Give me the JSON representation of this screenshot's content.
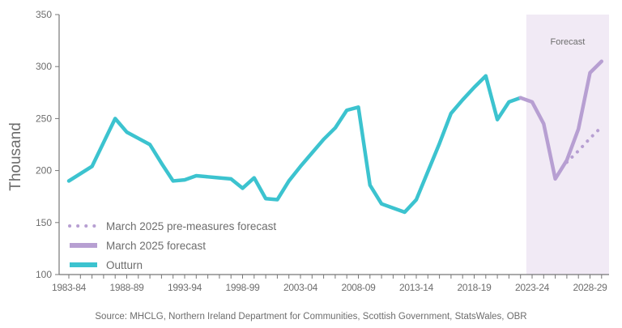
{
  "chart_data": {
    "type": "line",
    "ylabel": "Thousand",
    "xlabel": "",
    "ylim": [
      100,
      350
    ],
    "yticks": [
      100,
      150,
      200,
      250,
      300,
      350
    ],
    "categories": [
      "1983-84",
      "1984-85",
      "1985-86",
      "1986-87",
      "1987-88",
      "1988-89",
      "1989-90",
      "1990-91",
      "1991-92",
      "1992-93",
      "1993-94",
      "1994-95",
      "1995-96",
      "1996-97",
      "1997-98",
      "1998-99",
      "1999-00",
      "2000-01",
      "2001-02",
      "2002-03",
      "2003-04",
      "2004-05",
      "2005-06",
      "2006-07",
      "2007-08",
      "2008-09",
      "2009-10",
      "2010-11",
      "2011-12",
      "2012-13",
      "2013-14",
      "2014-15",
      "2015-16",
      "2016-17",
      "2017-18",
      "2018-19",
      "2019-20",
      "2020-21",
      "2021-22",
      "2022-23",
      "2023-24",
      "2024-25",
      "2025-26",
      "2026-27",
      "2027-28",
      "2028-29",
      "2029-30"
    ],
    "xtick_labels": [
      "1983-84",
      "1988-89",
      "1993-94",
      "1998-99",
      "2003-04",
      "2008-09",
      "2013-14",
      "2018-19",
      "2023-24",
      "2028-29"
    ],
    "shaded_region": {
      "label": "Forecast",
      "from": "2022-23",
      "to": "2029-30",
      "color": "#f1eaf5"
    },
    "series": [
      {
        "name": "Outturn",
        "color": "#3cc3cf",
        "style": "solid",
        "values": [
          190,
          197,
          204,
          227,
          250,
          237,
          231,
          225,
          207,
          190,
          191,
          195,
          194,
          193,
          192,
          183,
          193,
          173,
          172,
          190,
          204,
          217,
          230,
          241,
          258,
          261,
          186,
          168,
          164,
          160,
          172,
          199,
          226,
          255,
          268,
          280,
          291,
          249,
          266,
          270,
          null,
          null,
          null,
          null,
          null,
          null,
          null
        ]
      },
      {
        "name": "March 2025 forecast",
        "color": "#b79fd2",
        "style": "solid",
        "values": [
          null,
          null,
          null,
          null,
          null,
          null,
          null,
          null,
          null,
          null,
          null,
          null,
          null,
          null,
          null,
          null,
          null,
          null,
          null,
          null,
          null,
          null,
          null,
          null,
          null,
          null,
          null,
          null,
          null,
          null,
          null,
          null,
          null,
          null,
          null,
          null,
          null,
          null,
          null,
          270,
          266,
          245,
          192,
          210,
          240,
          294,
          305
        ]
      },
      {
        "name": "March 2025 pre-measures forecast",
        "color": "#b79fd2",
        "style": "dotted",
        "values": [
          null,
          null,
          null,
          null,
          null,
          null,
          null,
          null,
          null,
          null,
          null,
          null,
          null,
          null,
          null,
          null,
          null,
          null,
          null,
          null,
          null,
          null,
          null,
          null,
          null,
          null,
          null,
          null,
          null,
          null,
          null,
          null,
          null,
          null,
          null,
          null,
          null,
          null,
          null,
          null,
          null,
          null,
          null,
          208,
          219,
          231,
          242
        ]
      }
    ],
    "legend_position": "bottom-left",
    "legend_order": [
      "March 2025 pre-measures forecast",
      "March 2025 forecast",
      "Outturn"
    ]
  },
  "source": "Source: MHCLG, Northern Ireland Department for Communities, Scottish Government, StatsWales, OBR"
}
